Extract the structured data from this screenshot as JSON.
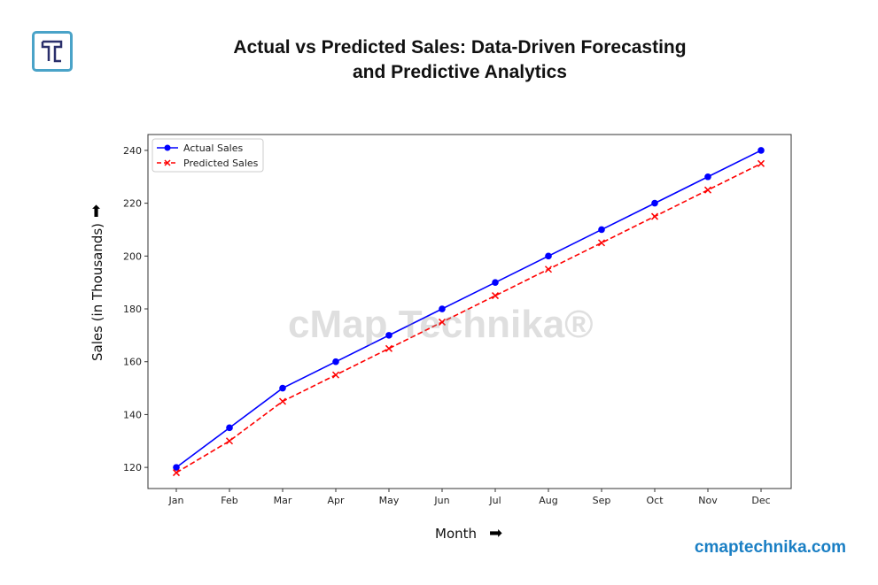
{
  "title_line1": "Actual vs Predicted Sales: Data-Driven Forecasting",
  "title_line2": "and Predictive Analytics",
  "logo_text": "T",
  "watermark": "cMap Technika®",
  "site": "cmaptechnika.com",
  "chart_data": {
    "type": "line",
    "title": "Actual vs Predicted Sales: Data-Driven Forecasting and Predictive Analytics",
    "xlabel": "Month",
    "ylabel": "Sales (in Thousands)",
    "categories": [
      "Jan",
      "Feb",
      "Mar",
      "Apr",
      "May",
      "Jun",
      "Jul",
      "Aug",
      "Sep",
      "Oct",
      "Nov",
      "Dec"
    ],
    "yticks": [
      120,
      140,
      160,
      180,
      200,
      220,
      240
    ],
    "ylim": [
      112,
      246
    ],
    "grid": false,
    "legend": "top-left",
    "series": [
      {
        "name": "Actual Sales",
        "color": "#0000ff",
        "marker": "circle",
        "linestyle": "solid",
        "values": [
          120,
          135,
          150,
          160,
          170,
          180,
          190,
          200,
          210,
          220,
          230,
          240
        ]
      },
      {
        "name": "Predicted Sales",
        "color": "#ff0000",
        "marker": "x",
        "linestyle": "dashed",
        "values": [
          118,
          130,
          145,
          155,
          165,
          175,
          185,
          195,
          205,
          215,
          225,
          235
        ]
      }
    ]
  }
}
